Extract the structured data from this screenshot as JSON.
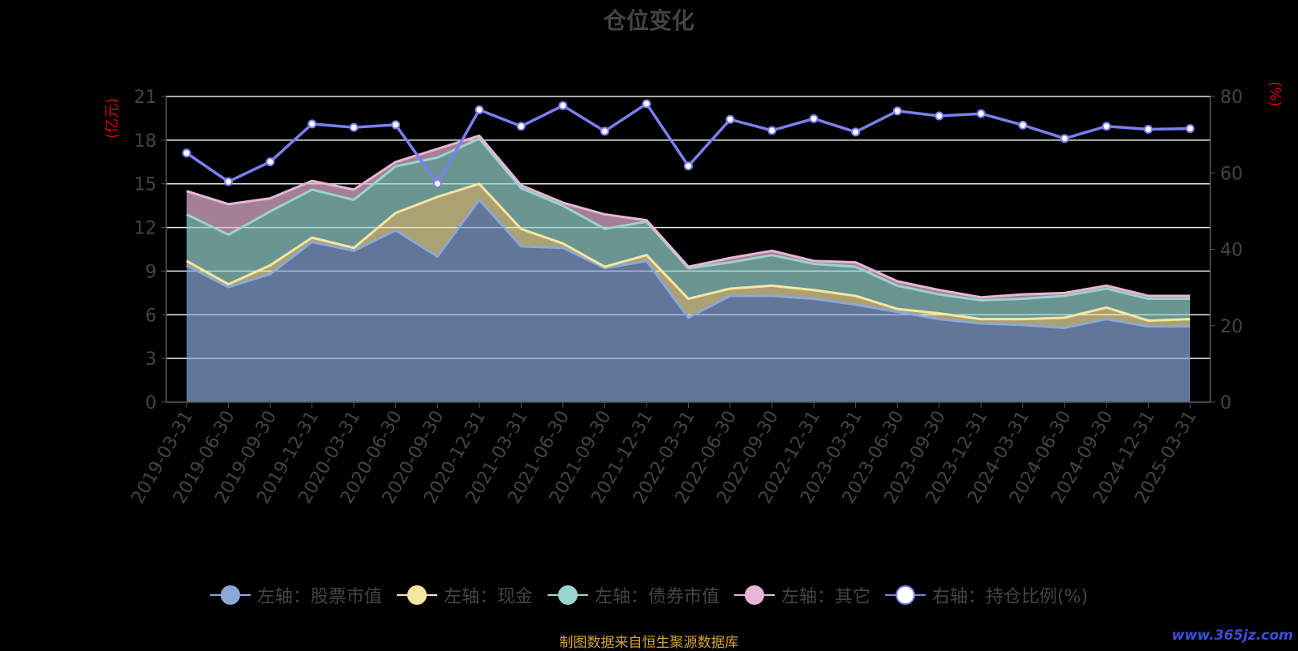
{
  "title": "仓位变化",
  "source_note": "制图数据来自恒生聚源数据库",
  "watermark": "www.365jz.com",
  "chart_data": {
    "type": "area",
    "categories": [
      "2019-03-31",
      "2019-06-30",
      "2019-09-30",
      "2019-12-31",
      "2020-03-31",
      "2020-06-30",
      "2020-09-30",
      "2020-12-31",
      "2021-03-31",
      "2021-06-30",
      "2021-09-30",
      "2021-12-31",
      "2022-03-31",
      "2022-06-30",
      "2022-09-30",
      "2022-12-31",
      "2023-03-31",
      "2023-06-30",
      "2023-09-30",
      "2023-12-31",
      "2024-03-31",
      "2024-06-30",
      "2024-09-30",
      "2024-12-31",
      "2025-03-31"
    ],
    "left_axis": {
      "label": "(亿元)",
      "min": 0,
      "max": 21,
      "ticks": [
        "0",
        "3",
        "6",
        "9",
        "12",
        "15",
        "18",
        "21"
      ]
    },
    "right_axis": {
      "label": "(%)",
      "min": 0,
      "max": 80,
      "ticks": [
        "0",
        "20",
        "40",
        "60",
        "80"
      ]
    },
    "stacked": true,
    "series": [
      {
        "name": "左轴：股票市值",
        "axis": "left",
        "color": "#8aa8da",
        "values": [
          9.4,
          7.9,
          8.8,
          11.0,
          10.4,
          11.8,
          10.0,
          13.9,
          10.7,
          10.6,
          9.2,
          9.7,
          5.8,
          7.3,
          7.3,
          7.1,
          6.7,
          6.2,
          5.7,
          5.4,
          5.3,
          5.1,
          5.7,
          5.2,
          5.2
        ]
      },
      {
        "name": "左轴：现金",
        "axis": "left",
        "color": "#f5e6a3",
        "values": [
          0.3,
          0.2,
          0.6,
          0.3,
          0.2,
          1.2,
          4.1,
          1.1,
          1.2,
          0.3,
          0.1,
          0.4,
          1.3,
          0.5,
          0.7,
          0.6,
          0.6,
          0.2,
          0.4,
          0.3,
          0.4,
          0.7,
          0.8,
          0.4,
          0.5
        ]
      },
      {
        "name": "左轴：债券市值",
        "axis": "left",
        "color": "#99d4cf",
        "values": [
          3.2,
          3.4,
          3.7,
          3.3,
          3.3,
          3.2,
          2.7,
          3.1,
          2.8,
          2.6,
          2.6,
          2.3,
          2.1,
          1.8,
          2.1,
          1.8,
          2.0,
          1.6,
          1.3,
          1.3,
          1.4,
          1.5,
          1.3,
          1.5,
          1.4
        ]
      },
      {
        "name": "左轴：其它",
        "axis": "left",
        "color": "#e8b6d6",
        "values": [
          1.6,
          2.1,
          0.9,
          0.6,
          0.7,
          0.3,
          0.6,
          0.2,
          0.2,
          0.2,
          1.0,
          0.1,
          0.1,
          0.3,
          0.3,
          0.2,
          0.3,
          0.3,
          0.3,
          0.2,
          0.3,
          0.2,
          0.2,
          0.2,
          0.2
        ]
      },
      {
        "name": "右轴：持仓比例(%)",
        "axis": "right",
        "type": "line",
        "color": "#7b7ff0",
        "values": [
          65.2,
          57.7,
          62.9,
          72.8,
          71.9,
          72.6,
          57.2,
          76.5,
          72.2,
          77.6,
          70.9,
          78.1,
          61.8,
          74.0,
          71.1,
          74.2,
          70.7,
          76.2,
          74.9,
          75.5,
          72.5,
          69.0,
          72.2,
          71.4,
          71.6
        ]
      }
    ],
    "grid": true,
    "legend_position": "bottom"
  }
}
